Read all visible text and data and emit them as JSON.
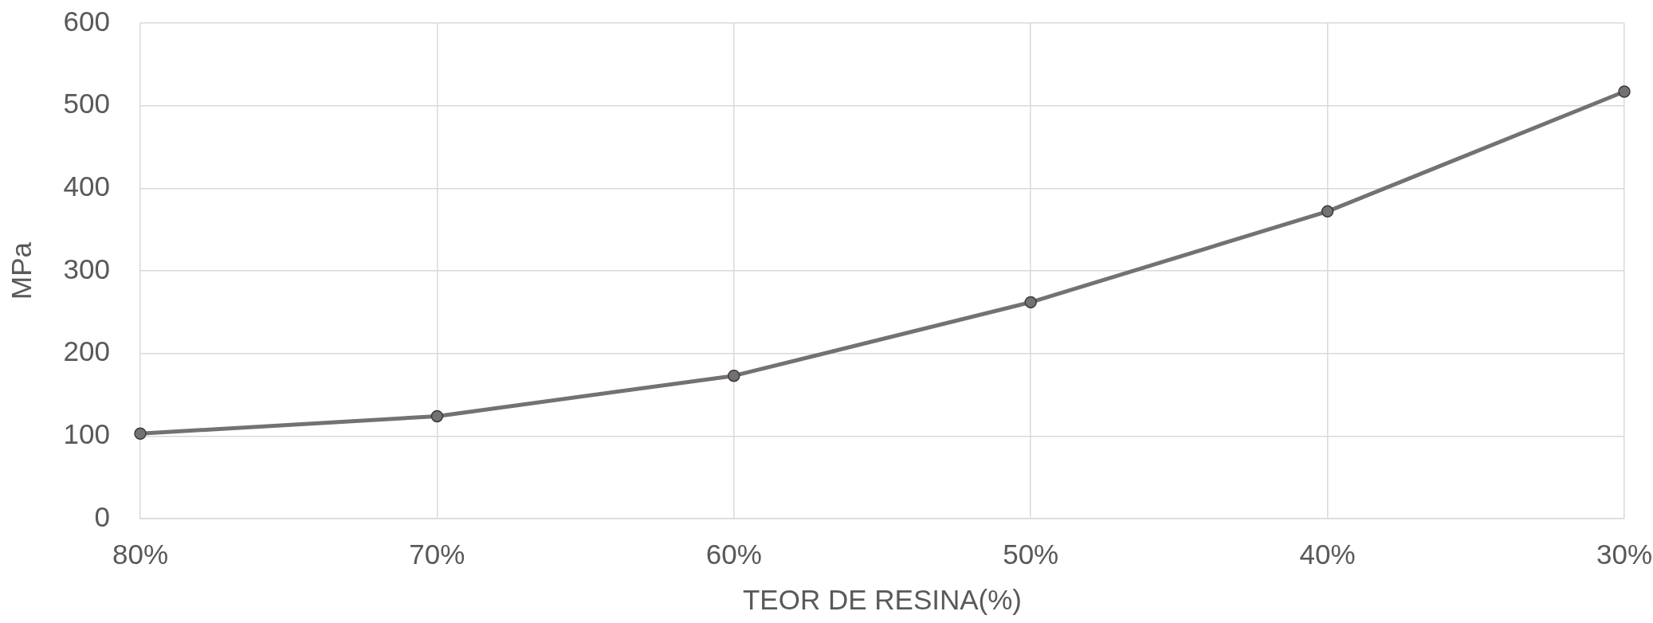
{
  "chart_data": {
    "type": "line",
    "xlabel": "TEOR DE RESINA(%)",
    "ylabel": "MPa",
    "categories": [
      "80%",
      "70%",
      "60%",
      "50%",
      "40%",
      "30%"
    ],
    "series": [
      {
        "color": "#767171",
        "values": [
          103,
          124,
          173,
          262,
          372,
          517
        ]
      }
    ],
    "ylim": [
      0,
      600
    ],
    "yticks": [
      0,
      100,
      200,
      300,
      400,
      500,
      600
    ],
    "grid": true,
    "legend": false,
    "marker": "circle",
    "line_style": "solid"
  }
}
